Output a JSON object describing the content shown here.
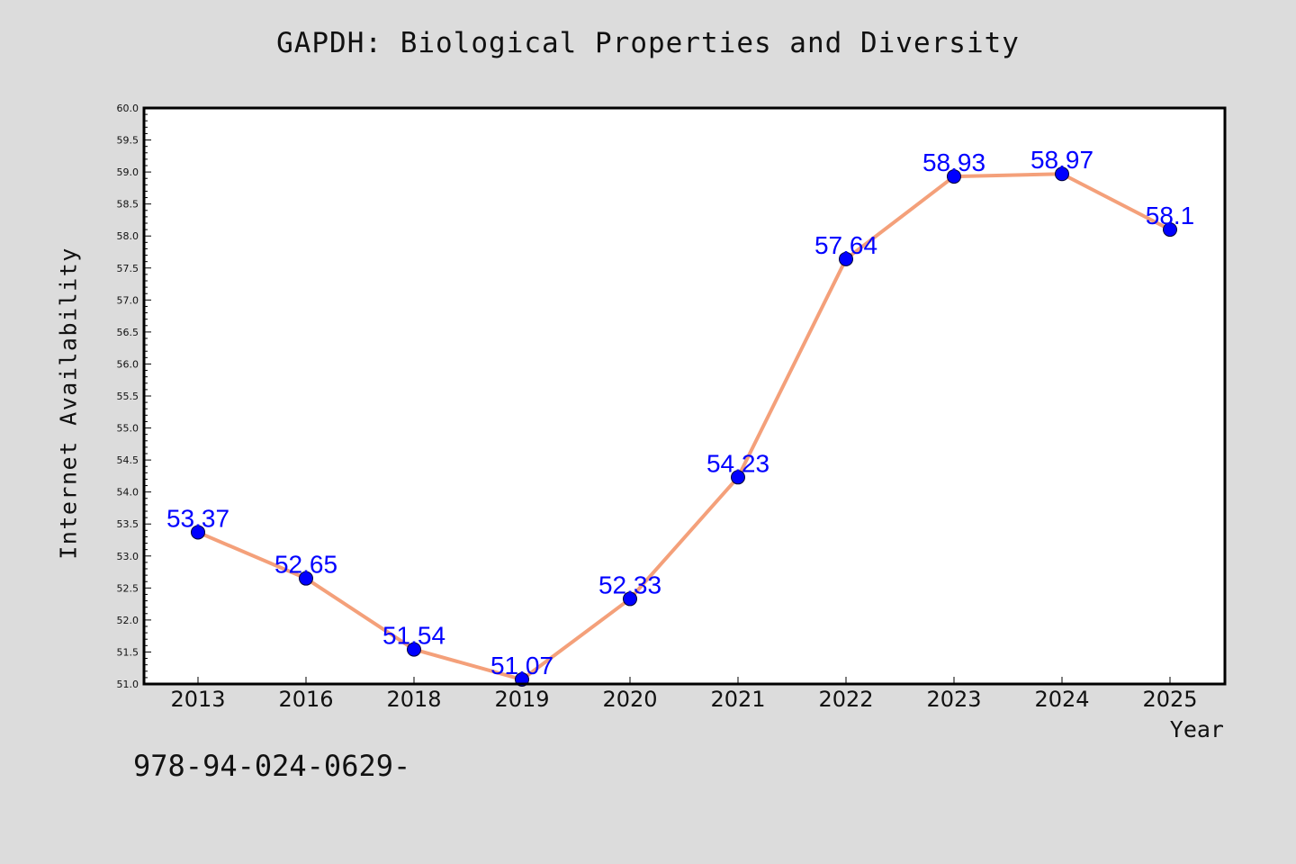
{
  "chart_data": {
    "type": "line",
    "title": "GAPDH: Biological Properties and Diversity",
    "xlabel": "Year",
    "ylabel": "Internet Availability",
    "categories": [
      "2013",
      "2016",
      "2018",
      "2019",
      "2020",
      "2021",
      "2022",
      "2023",
      "2024",
      "2025"
    ],
    "series": [
      {
        "values": [
          53.37,
          52.65,
          51.54,
          51.07,
          52.33,
          54.23,
          57.64,
          58.93,
          58.97,
          58.1
        ],
        "labels": [
          "53.37",
          "52.65",
          "51.54",
          "51.07",
          "52.33",
          "54.23",
          "57.64",
          "58.93",
          "58.97",
          "58.1"
        ],
        "line_color": "#f4a07a",
        "marker_color": "#0000ff"
      }
    ],
    "ylim": [
      51.0,
      60.0
    ],
    "y_ticks": [
      "51.0",
      "51.5",
      "52.0",
      "52.5",
      "53.0",
      "53.5",
      "54.0",
      "54.5",
      "55.0",
      "55.5",
      "56.0",
      "56.5",
      "57.0",
      "57.5",
      "58.0",
      "58.5",
      "59.0",
      "59.5",
      "60.0"
    ],
    "grid": false,
    "legend": "none"
  },
  "footnote": "978-94-024-0629-",
  "colors": {
    "background": "#dcdcdc",
    "plot_background": "#ffffff",
    "line": "#f4a07a",
    "marker": "#0000ff",
    "label": "#0000ff"
  }
}
